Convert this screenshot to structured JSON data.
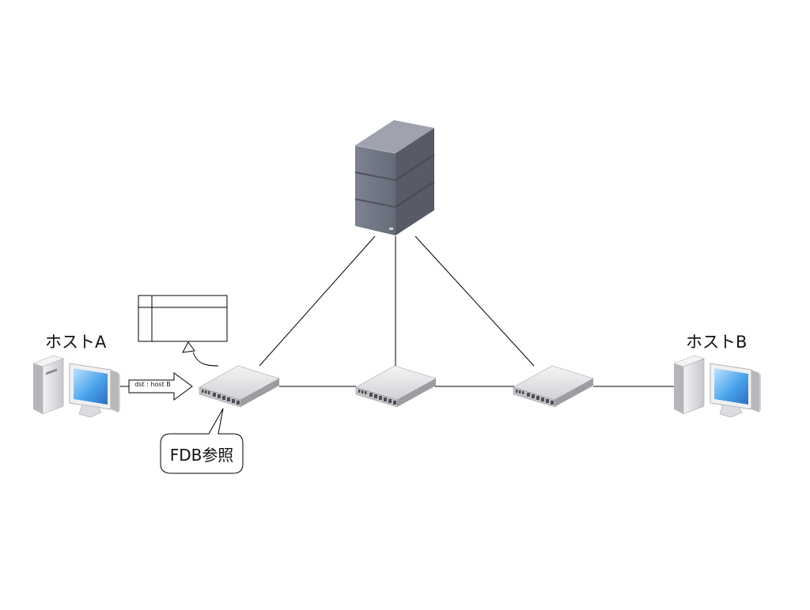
{
  "diagram": {
    "host_a": {
      "label": "ホストA",
      "icon": "desktop-computer-icon"
    },
    "host_b": {
      "label": "ホストB",
      "icon": "desktop-computer-icon"
    },
    "server": {
      "icon": "server-tower-icon"
    },
    "switches": [
      {
        "icon": "network-switch-icon"
      },
      {
        "icon": "network-switch-icon"
      },
      {
        "icon": "network-switch-icon"
      }
    ],
    "packet": {
      "label": "dst : host B"
    },
    "callout": {
      "label": "FDB参照"
    },
    "fdb_table": {
      "rows": 2,
      "columns": 2
    },
    "colors": {
      "line": "#000000",
      "device_body": "#d8d8dc",
      "server_body": "#6e7480",
      "screen": "#4aa0e8"
    }
  }
}
